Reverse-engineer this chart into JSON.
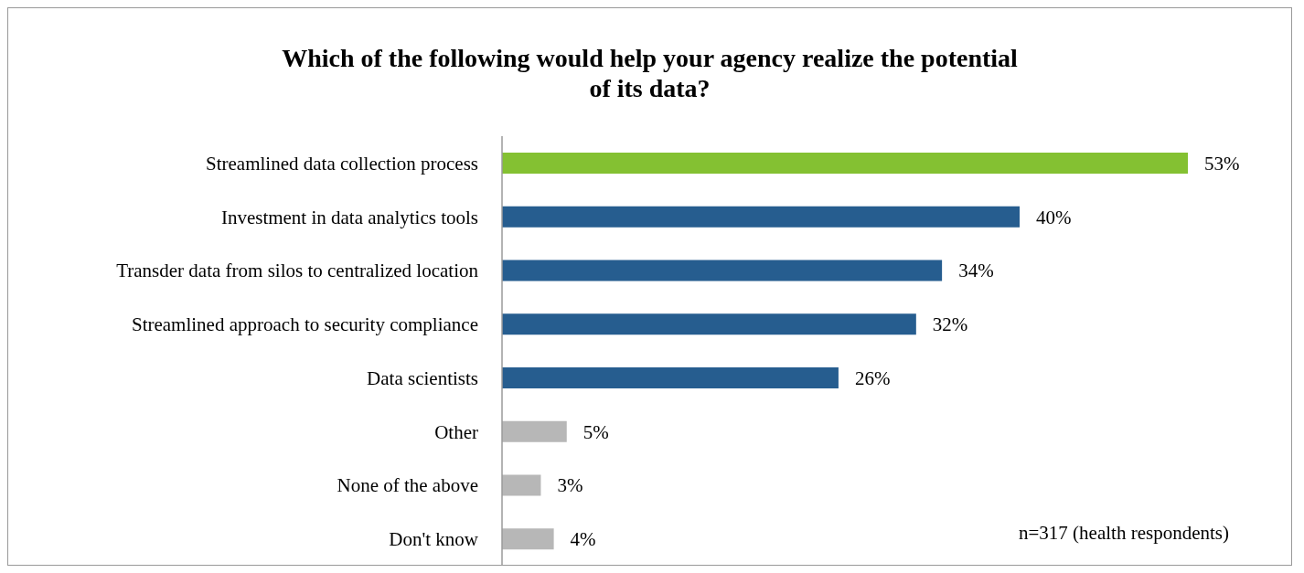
{
  "chart_data": {
    "type": "bar",
    "orientation": "horizontal",
    "title": "Which of the following would help your agency realize the potential of its data?",
    "categories": [
      "Streamlined data collection process",
      "Investment in data analytics tools",
      "Transder data from silos to centralized location",
      "Streamlined approach to security compliance",
      "Data scientists",
      "Other",
      "None of the above",
      "Don't know"
    ],
    "values": [
      53,
      40,
      34,
      32,
      26,
      5,
      3,
      4
    ],
    "colors": [
      "#84c132",
      "#265d8f",
      "#265d8f",
      "#265d8f",
      "#265d8f",
      "#b7b7b7",
      "#b7b7b7",
      "#b7b7b7"
    ],
    "value_labels": [
      "53%",
      "40%",
      "34%",
      "32%",
      "26%",
      "5%",
      "3%",
      "4%"
    ],
    "annotations": [
      "n=317 (health respondents)"
    ]
  }
}
